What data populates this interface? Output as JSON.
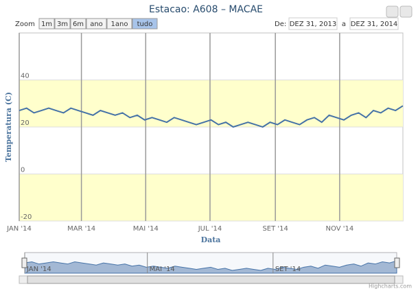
{
  "chart_data": {
    "type": "line",
    "title": "Estacao: A608 – MACAE",
    "x_label": "Data",
    "y_label": "Temperatura (C)",
    "color": "#4572a7",
    "x": [
      0,
      7,
      14,
      21,
      28,
      35,
      42,
      49,
      56,
      63,
      70,
      77,
      84,
      91,
      98,
      105,
      112,
      119,
      126,
      133,
      140,
      147,
      154,
      161,
      168,
      175,
      182,
      189,
      196,
      203,
      210,
      217,
      224,
      231,
      238,
      245,
      252,
      259,
      266,
      273,
      280,
      287,
      294,
      301,
      308,
      315,
      322,
      329,
      336,
      343,
      350,
      357,
      364
    ],
    "values": [
      27,
      28,
      26,
      27,
      28,
      27,
      26,
      28,
      27,
      26,
      25,
      27,
      26,
      25,
      26,
      24,
      25,
      23,
      24,
      23,
      22,
      24,
      23,
      22,
      21,
      22,
      23,
      21,
      22,
      20,
      21,
      22,
      21,
      20,
      22,
      21,
      23,
      22,
      21,
      23,
      24,
      22,
      25,
      24,
      23,
      25,
      26,
      24,
      27,
      26,
      28,
      27,
      29
    ],
    "xlim": [
      0,
      364
    ],
    "xticks": [
      {
        "value": 0,
        "label": "JAN '14"
      },
      {
        "value": 59,
        "label": "MAR '14"
      },
      {
        "value": 120,
        "label": "MAI '14"
      },
      {
        "value": 181,
        "label": "JUL '14"
      },
      {
        "value": 243,
        "label": "SET '14"
      },
      {
        "value": 304,
        "label": "NOV '14"
      }
    ],
    "ylim": [
      -20,
      60
    ],
    "yticks": [
      -20,
      0,
      20,
      40
    ],
    "plot_bands": [
      [
        20,
        40
      ],
      [
        -20,
        0
      ]
    ],
    "band_color": "#ffffcc",
    "grid": true,
    "navigator": {
      "xticks": [
        {
          "value": 0,
          "label": "JAN '14"
        },
        {
          "value": 120,
          "label": "MAI '14"
        },
        {
          "value": 243,
          "label": "SET '14"
        }
      ]
    },
    "range_selector": {
      "label": "Zoom",
      "buttons": [
        "1m",
        "3m",
        "6m",
        "ano",
        "1ano",
        "tudo"
      ],
      "selected": 5,
      "from_label": "De:",
      "from": "DEZ 31, 2013",
      "to_label": "a",
      "to": "DEZ 31, 2014"
    },
    "credits": "Highcharts.com"
  }
}
